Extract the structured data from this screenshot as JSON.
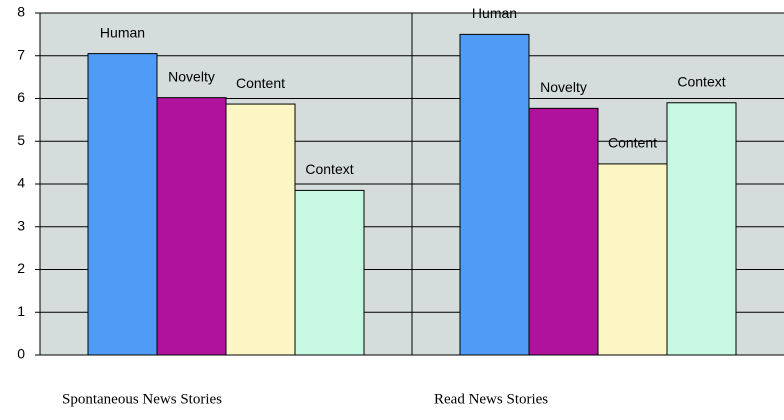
{
  "chart_data": {
    "type": "bar",
    "categories": [
      "Spontaneous News Stories",
      "Read News Stories"
    ],
    "series": [
      {
        "name": "Human",
        "color": "#4f9bf5",
        "values": [
          7.05,
          7.5
        ]
      },
      {
        "name": "Novelty",
        "color": "#b0129e",
        "values": [
          6.02,
          5.77
        ]
      },
      {
        "name": "Content",
        "color": "#fbf6c4",
        "values": [
          5.87,
          4.47
        ]
      },
      {
        "name": "Context",
        "color": "#c6f8e2",
        "values": [
          3.85,
          5.9
        ]
      }
    ],
    "ylim": [
      0,
      8
    ],
    "yticks": [
      0,
      1,
      2,
      3,
      4,
      5,
      6,
      7,
      8
    ],
    "grid": true
  }
}
